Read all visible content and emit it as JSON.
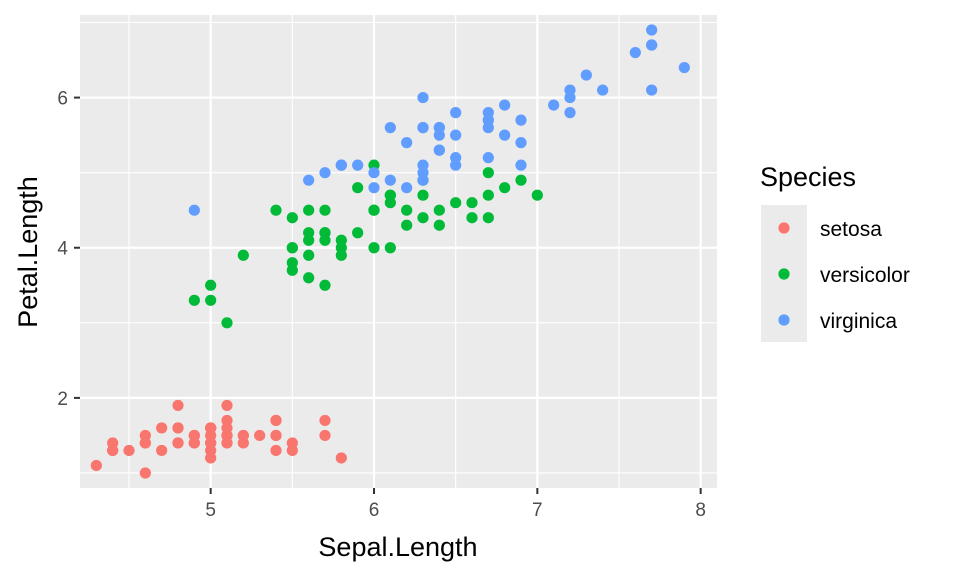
{
  "chart_data": {
    "type": "scatter",
    "xlabel": "Sepal.Length",
    "ylabel": "Petal.Length",
    "xlim": [
      4.2,
      8.1
    ],
    "ylim": [
      0.8,
      7.1
    ],
    "x_ticks": [
      5,
      6,
      7,
      8
    ],
    "y_ticks": [
      2,
      4,
      6
    ],
    "x_tick_labels": [
      "5",
      "6",
      "7",
      "8"
    ],
    "y_tick_labels": [
      "2",
      "4",
      "6"
    ],
    "grid": true,
    "legend": {
      "title": "Species",
      "position": "right"
    },
    "series": [
      {
        "name": "setosa",
        "color": "#F8766D",
        "points": [
          [
            5.1,
            1.4
          ],
          [
            4.9,
            1.4
          ],
          [
            4.7,
            1.3
          ],
          [
            4.6,
            1.5
          ],
          [
            5.0,
            1.4
          ],
          [
            5.4,
            1.7
          ],
          [
            4.6,
            1.4
          ],
          [
            5.0,
            1.5
          ],
          [
            4.4,
            1.4
          ],
          [
            4.9,
            1.5
          ],
          [
            5.4,
            1.5
          ],
          [
            4.8,
            1.6
          ],
          [
            4.8,
            1.4
          ],
          [
            4.3,
            1.1
          ],
          [
            5.8,
            1.2
          ],
          [
            5.7,
            1.5
          ],
          [
            5.4,
            1.3
          ],
          [
            5.1,
            1.4
          ],
          [
            5.7,
            1.7
          ],
          [
            5.1,
            1.5
          ],
          [
            5.4,
            1.7
          ],
          [
            5.1,
            1.5
          ],
          [
            4.6,
            1.0
          ],
          [
            5.1,
            1.7
          ],
          [
            4.8,
            1.9
          ],
          [
            5.0,
            1.6
          ],
          [
            5.0,
            1.6
          ],
          [
            5.2,
            1.5
          ],
          [
            5.2,
            1.4
          ],
          [
            4.7,
            1.6
          ],
          [
            4.8,
            1.6
          ],
          [
            5.4,
            1.5
          ],
          [
            5.2,
            1.5
          ],
          [
            5.5,
            1.4
          ],
          [
            4.9,
            1.5
          ],
          [
            5.0,
            1.2
          ],
          [
            5.5,
            1.3
          ],
          [
            4.9,
            1.4
          ],
          [
            4.4,
            1.3
          ],
          [
            5.1,
            1.5
          ],
          [
            5.0,
            1.3
          ],
          [
            4.5,
            1.3
          ],
          [
            4.4,
            1.3
          ],
          [
            5.0,
            1.6
          ],
          [
            5.1,
            1.9
          ],
          [
            4.8,
            1.4
          ],
          [
            5.1,
            1.6
          ],
          [
            4.6,
            1.4
          ],
          [
            5.3,
            1.5
          ],
          [
            5.0,
            1.4
          ]
        ]
      },
      {
        "name": "versicolor",
        "color": "#00BA38",
        "points": [
          [
            7.0,
            4.7
          ],
          [
            6.4,
            4.5
          ],
          [
            6.9,
            4.9
          ],
          [
            5.5,
            4.0
          ],
          [
            6.5,
            4.6
          ],
          [
            5.7,
            4.5
          ],
          [
            6.3,
            4.7
          ],
          [
            4.9,
            3.3
          ],
          [
            6.6,
            4.6
          ],
          [
            5.2,
            3.9
          ],
          [
            5.0,
            3.5
          ],
          [
            5.9,
            4.2
          ],
          [
            6.0,
            4.0
          ],
          [
            6.1,
            4.7
          ],
          [
            5.6,
            3.6
          ],
          [
            6.7,
            4.4
          ],
          [
            5.6,
            4.5
          ],
          [
            5.8,
            4.1
          ],
          [
            6.2,
            4.5
          ],
          [
            5.6,
            3.9
          ],
          [
            5.9,
            4.8
          ],
          [
            6.1,
            4.0
          ],
          [
            6.3,
            4.9
          ],
          [
            6.1,
            4.7
          ],
          [
            6.4,
            4.3
          ],
          [
            6.6,
            4.4
          ],
          [
            6.8,
            4.8
          ],
          [
            6.7,
            5.0
          ],
          [
            6.0,
            4.5
          ],
          [
            5.7,
            3.5
          ],
          [
            5.5,
            3.8
          ],
          [
            5.5,
            3.7
          ],
          [
            5.8,
            3.9
          ],
          [
            6.0,
            5.1
          ],
          [
            5.4,
            4.5
          ],
          [
            6.0,
            4.5
          ],
          [
            6.7,
            4.7
          ],
          [
            6.3,
            4.4
          ],
          [
            5.6,
            4.1
          ],
          [
            5.5,
            4.0
          ],
          [
            5.5,
            4.4
          ],
          [
            6.1,
            4.6
          ],
          [
            5.8,
            4.0
          ],
          [
            5.0,
            3.3
          ],
          [
            5.6,
            4.2
          ],
          [
            5.7,
            4.2
          ],
          [
            5.7,
            4.2
          ],
          [
            6.2,
            4.3
          ],
          [
            5.1,
            3.0
          ],
          [
            5.7,
            4.1
          ]
        ]
      },
      {
        "name": "virginica",
        "color": "#619CFF",
        "points": [
          [
            6.3,
            6.0
          ],
          [
            5.8,
            5.1
          ],
          [
            7.1,
            5.9
          ],
          [
            6.3,
            5.6
          ],
          [
            6.5,
            5.8
          ],
          [
            7.6,
            6.6
          ],
          [
            4.9,
            4.5
          ],
          [
            7.3,
            6.3
          ],
          [
            6.7,
            5.8
          ],
          [
            7.2,
            6.1
          ],
          [
            6.5,
            5.1
          ],
          [
            6.4,
            5.3
          ],
          [
            6.8,
            5.5
          ],
          [
            5.7,
            5.0
          ],
          [
            5.8,
            5.1
          ],
          [
            6.4,
            5.3
          ],
          [
            6.5,
            5.5
          ],
          [
            7.7,
            6.7
          ],
          [
            7.7,
            6.9
          ],
          [
            6.0,
            5.0
          ],
          [
            6.9,
            5.7
          ],
          [
            5.6,
            4.9
          ],
          [
            7.7,
            6.7
          ],
          [
            6.3,
            4.9
          ],
          [
            6.7,
            5.7
          ],
          [
            7.2,
            6.0
          ],
          [
            6.2,
            4.8
          ],
          [
            6.1,
            4.9
          ],
          [
            6.4,
            5.6
          ],
          [
            7.2,
            5.8
          ],
          [
            7.4,
            6.1
          ],
          [
            7.9,
            6.4
          ],
          [
            6.4,
            5.6
          ],
          [
            6.3,
            5.1
          ],
          [
            6.1,
            5.6
          ],
          [
            7.7,
            6.1
          ],
          [
            6.3,
            5.6
          ],
          [
            6.4,
            5.5
          ],
          [
            6.0,
            4.8
          ],
          [
            6.9,
            5.4
          ],
          [
            6.7,
            5.6
          ],
          [
            6.9,
            5.1
          ],
          [
            5.8,
            5.1
          ],
          [
            6.8,
            5.9
          ],
          [
            6.7,
            5.7
          ],
          [
            6.7,
            5.2
          ],
          [
            6.3,
            5.0
          ],
          [
            6.5,
            5.2
          ],
          [
            6.2,
            5.4
          ],
          [
            5.9,
            5.1
          ]
        ]
      }
    ]
  }
}
